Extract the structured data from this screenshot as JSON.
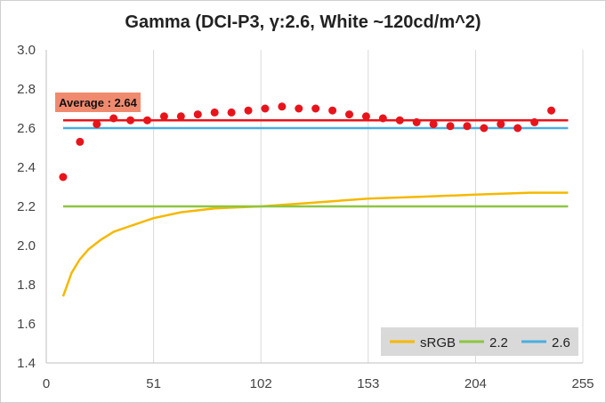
{
  "chart_data": {
    "type": "scatter",
    "title": "Gamma (DCI-P3, γ:2.6, White ~120cd/m^2)",
    "xlim": [
      0,
      255
    ],
    "ylim": [
      1.4,
      3.0
    ],
    "x_ticks": [
      0,
      51,
      102,
      153,
      204,
      255
    ],
    "y_ticks": [
      "1.4",
      "1.6",
      "1.8",
      "2.0",
      "2.2",
      "2.4",
      "2.6",
      "2.8",
      "3.0"
    ],
    "grid": "vertical",
    "measured_points": {
      "color": "#e8141b",
      "x": [
        8,
        16,
        24,
        32,
        40,
        48,
        56,
        64,
        72,
        80,
        88,
        96,
        104,
        112,
        120,
        128,
        136,
        144,
        152,
        160,
        168,
        176,
        184,
        192,
        200,
        208,
        216,
        224,
        232,
        240
      ],
      "y": [
        2.35,
        2.53,
        2.62,
        2.65,
        2.64,
        2.64,
        2.66,
        2.66,
        2.67,
        2.68,
        2.68,
        2.69,
        2.7,
        2.71,
        2.7,
        2.7,
        2.69,
        2.67,
        2.66,
        2.65,
        2.64,
        2.63,
        2.62,
        2.61,
        2.61,
        2.6,
        2.62,
        2.6,
        2.63,
        2.69
      ]
    },
    "average_line": {
      "y": 2.64,
      "label": "Average : 2.64",
      "color": "#e8141b"
    },
    "series": [
      {
        "name": "sRGB",
        "color": "#f5b800",
        "x": [
          8,
          12,
          16,
          20,
          26,
          32,
          40,
          51,
          64,
          80,
          102,
          128,
          153,
          180,
          204,
          230,
          248
        ],
        "y": [
          1.74,
          1.86,
          1.93,
          1.98,
          2.03,
          2.07,
          2.1,
          2.14,
          2.17,
          2.19,
          2.2,
          2.22,
          2.24,
          2.25,
          2.26,
          2.27,
          2.27
        ]
      },
      {
        "name": "2.2",
        "color": "#8dc63f",
        "x": [
          8,
          248
        ],
        "y": [
          2.2,
          2.2
        ]
      },
      {
        "name": "2.6",
        "color": "#4aafdf",
        "x": [
          8,
          248
        ],
        "y": [
          2.6,
          2.6
        ]
      }
    ],
    "legend": {
      "placement": "bottom-right",
      "background": "#d9d9d9"
    }
  }
}
